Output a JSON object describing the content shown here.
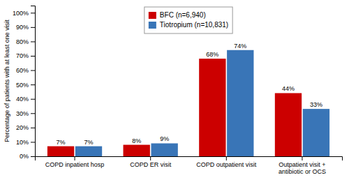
{
  "chart_data": {
    "type": "bar",
    "categories": [
      "COPD inpatient hosp",
      "COPD ER visit",
      "COPD outpatient visit",
      "Outpatient visit +\nantibiotic or OCS"
    ],
    "series": [
      {
        "name": "BFC (n=6,940)",
        "color": "#CC0000",
        "values": [
          7,
          8,
          68,
          44
        ],
        "value_labels": [
          "7%",
          "8%",
          "68%",
          "44%"
        ]
      },
      {
        "name": "Tiotropium (n=10,831)",
        "color": "#3975B7",
        "values": [
          7,
          9,
          74,
          33
        ],
        "value_labels": [
          "7%",
          "9%",
          "74%",
          "33%"
        ]
      }
    ],
    "ylabel": "Percentage of patients with at least one visit",
    "ylim": [
      0,
      105
    ],
    "yticks": [
      {
        "value": 0,
        "label": "0%"
      },
      {
        "value": 10,
        "label": "10%"
      },
      {
        "value": 20,
        "label": "20%"
      },
      {
        "value": 30,
        "label": "30%"
      },
      {
        "value": 40,
        "label": "40%"
      },
      {
        "value": 50,
        "label": "50%"
      },
      {
        "value": 60,
        "label": "60%"
      },
      {
        "value": 70,
        "label": "70%"
      },
      {
        "value": 80,
        "label": "80%"
      },
      {
        "value": 90,
        "label": "90%"
      },
      {
        "value": 100,
        "label": "100%"
      }
    ],
    "grid": false,
    "legend": "upper center",
    "data_labels": true
  }
}
